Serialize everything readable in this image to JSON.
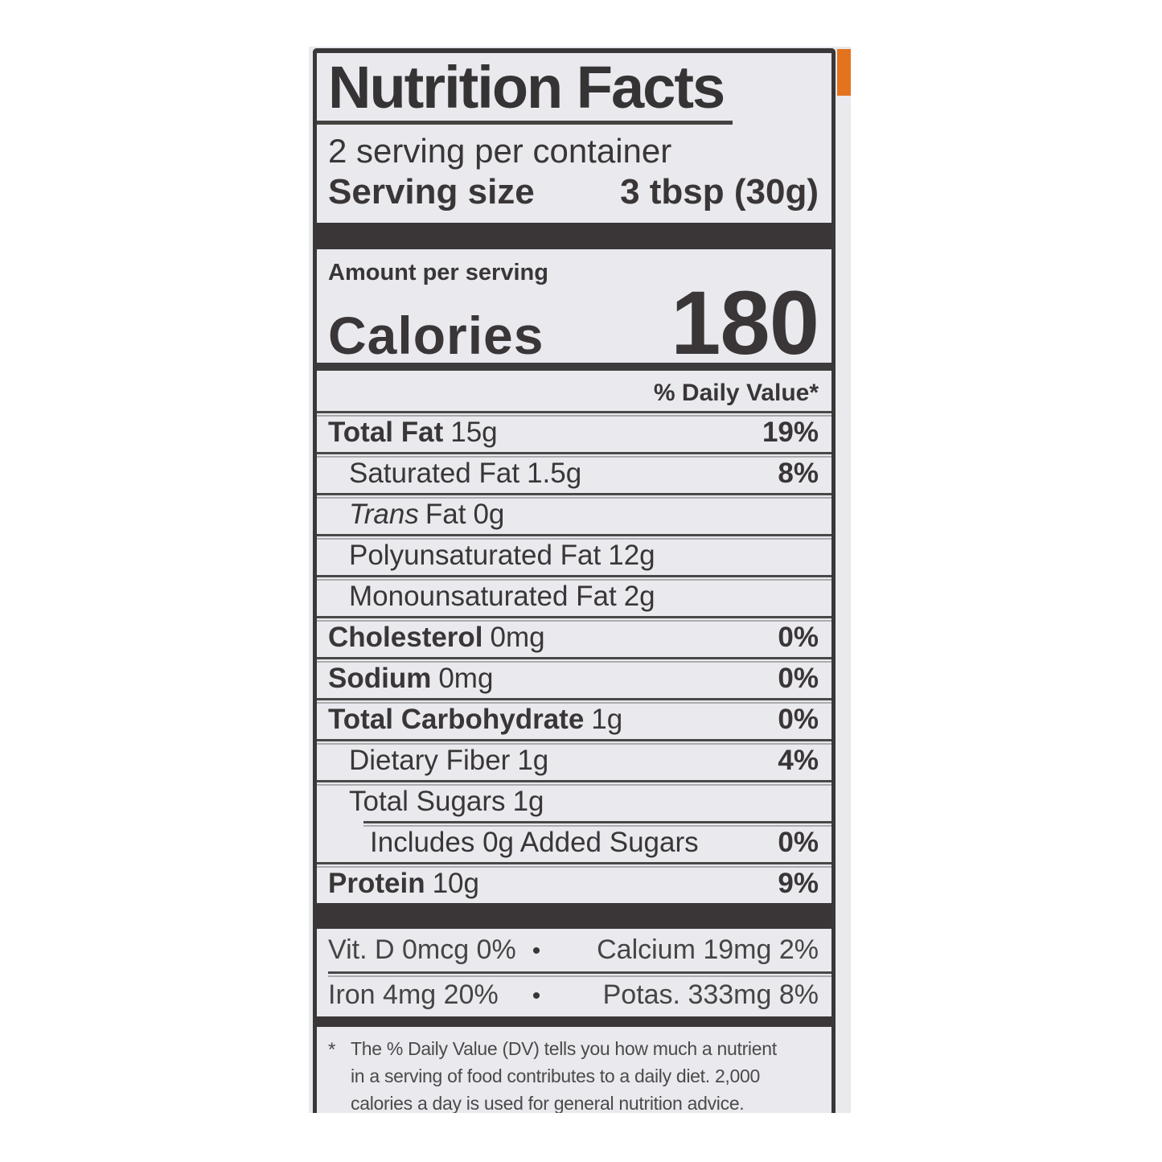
{
  "colors": {
    "canvas": "#ffffff",
    "label_background": "#e9e9ee",
    "text": "#3a3637",
    "muted_text": "#4c494a",
    "rule": "#4a4748",
    "bar": "#3a3637",
    "border": "#3a3738",
    "accent_orange": "#e4731f"
  },
  "label": {
    "title": "Nutrition Facts",
    "servings_per_container": "2 serving per container",
    "serving_size_label": "Serving size",
    "serving_size_value": "3 tbsp (30g)",
    "amount_per_serving_label": "Amount per serving",
    "calories_label": "Calories",
    "calories_value": "180",
    "daily_value_header": "% Daily Value*",
    "rows": [
      {
        "name": "Total Fat",
        "amount": "15g",
        "dv": "19%"
      },
      {
        "name": "Saturated Fat",
        "amount": "1.5g",
        "dv": "8%"
      },
      {
        "name_italic": "Trans",
        "name": "Fat",
        "amount": "0g",
        "dv": ""
      },
      {
        "name": "Polyunsaturated Fat",
        "amount": "12g",
        "dv": ""
      },
      {
        "name": "Monounsaturated Fat",
        "amount": "2g",
        "dv": ""
      },
      {
        "name": "Cholesterol",
        "amount": "0mg",
        "dv": "0%"
      },
      {
        "name": "Sodium",
        "amount": "0mg",
        "dv": "0%"
      },
      {
        "name": "Total Carbohydrate",
        "amount": "1g",
        "dv": "0%"
      },
      {
        "name": "Dietary Fiber",
        "amount": "1g",
        "dv": "4%"
      },
      {
        "name": "Total Sugars",
        "amount": "1g",
        "dv": ""
      },
      {
        "name": "Includes 0g Added Sugars",
        "amount": "",
        "dv": "0%"
      },
      {
        "name": "Protein",
        "amount": "10g",
        "dv": "9%"
      }
    ],
    "micronutrients": {
      "bullet": "•",
      "rows": [
        {
          "left": "Vit. D 0mcg 0%",
          "right": "Calcium 19mg 2%"
        },
        {
          "left": "Iron 4mg 20%",
          "right": "Potas. 333mg 8%"
        }
      ]
    },
    "footnote": {
      "marker": "*",
      "lines": [
        "The % Daily Value (DV) tells you how much a nutrient",
        "in a serving of food contributes to a daily diet. 2,000",
        "calories a day is used for general nutrition advice."
      ]
    }
  }
}
